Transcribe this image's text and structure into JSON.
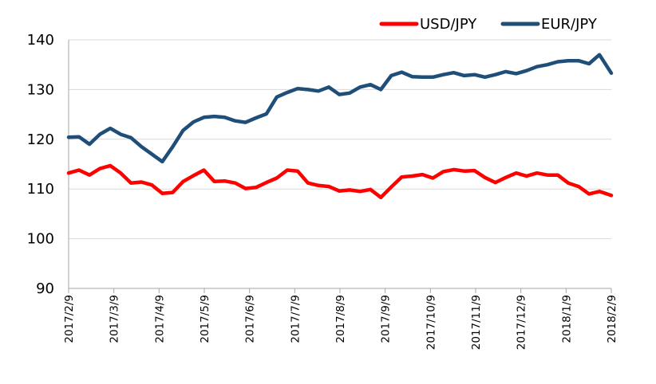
{
  "chart_data": {
    "type": "line",
    "title": "",
    "xlabel": "",
    "ylabel": "",
    "ylim": [
      90,
      140
    ],
    "yticks": [
      90,
      100,
      110,
      120,
      130,
      140
    ],
    "x_tick_labels": [
      "2017/2/9",
      "2017/3/9",
      "2017/4/9",
      "2017/5/9",
      "2017/6/9",
      "2017/7/9",
      "2017/8/9",
      "2017/9/9",
      "2017/10/9",
      "2017/11/9",
      "2017/12/9",
      "2018/1/9",
      "2018/2/9"
    ],
    "grid": "horizontal",
    "legend_position": "top-right",
    "x": [
      "2017-02-09",
      "2017-02-16",
      "2017-02-23",
      "2017-03-02",
      "2017-03-09",
      "2017-03-16",
      "2017-03-23",
      "2017-03-30",
      "2017-04-06",
      "2017-04-13",
      "2017-04-20",
      "2017-04-27",
      "2017-05-04",
      "2017-05-11",
      "2017-05-18",
      "2017-05-25",
      "2017-06-01",
      "2017-06-08",
      "2017-06-15",
      "2017-06-22",
      "2017-06-29",
      "2017-07-06",
      "2017-07-13",
      "2017-07-20",
      "2017-07-27",
      "2017-08-03",
      "2017-08-10",
      "2017-08-17",
      "2017-08-24",
      "2017-08-31",
      "2017-09-07",
      "2017-09-14",
      "2017-09-21",
      "2017-09-28",
      "2017-10-05",
      "2017-10-12",
      "2017-10-19",
      "2017-10-26",
      "2017-11-02",
      "2017-11-09",
      "2017-11-16",
      "2017-11-23",
      "2017-11-30",
      "2017-12-07",
      "2017-12-14",
      "2017-12-21",
      "2017-12-28",
      "2018-01-04",
      "2018-01-11",
      "2018-01-18",
      "2018-01-25",
      "2018-02-01",
      "2018-02-09"
    ],
    "series": [
      {
        "name": "USD/JPY",
        "color": "#ff0000",
        "values": [
          113.2,
          113.8,
          112.8,
          114.1,
          114.7,
          113.2,
          111.2,
          111.4,
          110.8,
          109.1,
          109.3,
          111.5,
          112.7,
          113.8,
          111.5,
          111.6,
          111.2,
          110.1,
          110.3,
          111.3,
          112.2,
          113.8,
          113.6,
          111.2,
          110.7,
          110.5,
          109.6,
          109.8,
          109.5,
          109.9,
          108.3,
          110.4,
          112.4,
          112.6,
          112.9,
          112.2,
          113.5,
          113.9,
          113.6,
          113.7,
          112.3,
          111.3,
          112.3,
          113.2,
          112.6,
          113.2,
          112.8,
          112.8,
          111.2,
          110.5,
          109.0,
          109.5,
          108.7
        ]
      },
      {
        "name": "EUR/JPY",
        "color": "#1f4e79",
        "values": [
          120.4,
          120.5,
          119.0,
          121.0,
          122.2,
          121.0,
          120.3,
          118.5,
          117.0,
          115.5,
          118.5,
          121.8,
          123.5,
          124.4,
          124.6,
          124.4,
          123.7,
          123.4,
          124.3,
          125.1,
          128.5,
          129.4,
          130.2,
          130.0,
          129.7,
          130.5,
          129.0,
          129.3,
          130.5,
          131.0,
          130.0,
          132.8,
          133.5,
          132.6,
          132.5,
          132.5,
          133.0,
          133.4,
          132.8,
          133.0,
          132.5,
          133.0,
          133.6,
          133.2,
          133.8,
          134.6,
          135.0,
          135.6,
          135.8,
          135.8,
          135.2,
          137.0,
          133.3
        ]
      }
    ]
  }
}
